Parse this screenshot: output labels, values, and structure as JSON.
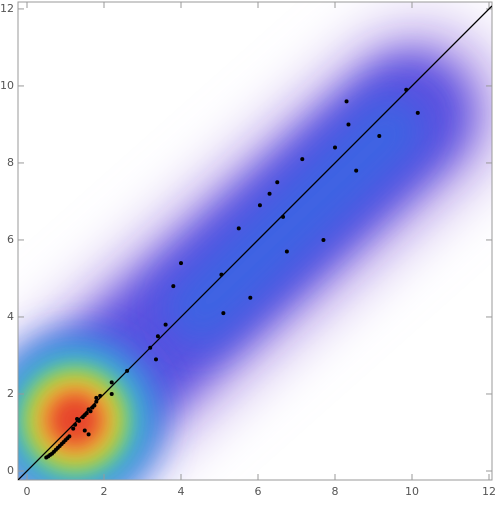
{
  "chart_data": {
    "type": "scatter",
    "x": [
      0.5,
      0.55,
      0.6,
      0.65,
      0.7,
      0.75,
      0.8,
      0.85,
      0.9,
      0.95,
      1.0,
      1.05,
      1.1,
      1.2,
      1.25,
      1.3,
      1.35,
      1.45,
      1.5,
      1.55,
      1.6,
      1.65,
      1.7,
      1.75,
      1.8,
      1.8,
      1.9,
      1.5,
      1.6,
      2.2,
      2.2,
      2.6,
      3.2,
      3.35,
      3.4,
      3.6,
      3.8,
      4.0,
      5.05,
      5.1,
      5.5,
      5.8,
      6.05,
      6.3,
      6.5,
      6.65,
      6.75,
      7.15,
      7.7,
      8.0,
      8.3,
      8.35,
      8.55,
      9.15,
      9.85,
      10.15
    ],
    "values": [
      0.35,
      0.38,
      0.42,
      0.45,
      0.5,
      0.55,
      0.6,
      0.65,
      0.7,
      0.75,
      0.8,
      0.85,
      0.9,
      1.1,
      1.2,
      1.35,
      1.3,
      1.4,
      1.45,
      1.5,
      1.6,
      1.55,
      1.65,
      1.7,
      1.8,
      1.9,
      1.95,
      1.05,
      0.95,
      2.0,
      2.3,
      2.6,
      3.2,
      2.9,
      3.5,
      3.8,
      4.8,
      5.4,
      5.1,
      4.1,
      6.3,
      4.5,
      6.9,
      7.2,
      7.5,
      6.6,
      5.7,
      8.1,
      6.0,
      8.4,
      9.6,
      9.0,
      7.8,
      8.7,
      9.9,
      9.3
    ],
    "color": "#000000",
    "xlim": [
      -0.234,
      12.078
    ],
    "ylim": [
      -0.234,
      12.18
    ],
    "xticks": [
      0,
      2,
      4,
      6,
      8,
      10,
      12
    ],
    "yticks": [
      0,
      2,
      4,
      6,
      8,
      10,
      12
    ]
  }
}
